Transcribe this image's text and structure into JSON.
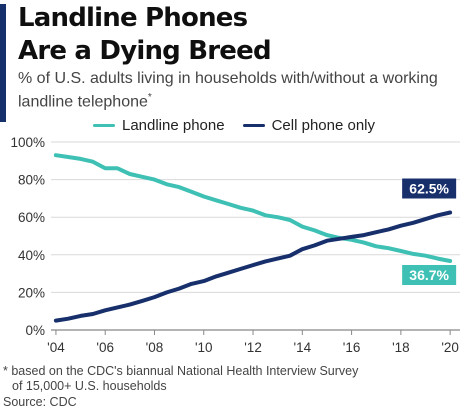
{
  "header": {
    "title_line1": "Landline Phones",
    "title_line2": "Are a Dying Breed",
    "subtitle_main": "% of U.S. adults living in households with/without a working landline telephone",
    "subtitle_marker": "*"
  },
  "colors": {
    "accent": "#15306b",
    "landline": "#3ec1b4",
    "cell": "#172f6b"
  },
  "chart_data": {
    "type": "line",
    "title": "Landline Phones Are a Dying Breed",
    "subtitle": "% of U.S. adults living in households with/without a working landline telephone*",
    "x": [
      2004.0,
      2004.5,
      2005.0,
      2005.5,
      2006.0,
      2006.5,
      2007.0,
      2007.5,
      2008.0,
      2008.5,
      2009.0,
      2009.5,
      2010.0,
      2010.5,
      2011.0,
      2011.5,
      2012.0,
      2012.5,
      2013.0,
      2013.5,
      2014.0,
      2014.5,
      2015.0,
      2015.5,
      2016.0,
      2016.5,
      2017.0,
      2017.5,
      2018.0,
      2018.5,
      2019.0,
      2019.5,
      2020.0
    ],
    "series": [
      {
        "name": "Landline phone",
        "color": "#3ec1b4",
        "values": [
          93.0,
          92.0,
          91.0,
          89.5,
          86.0,
          86.0,
          83.0,
          81.5,
          80.0,
          77.5,
          76.0,
          73.5,
          71.0,
          69.0,
          67.0,
          65.0,
          63.5,
          61.0,
          60.0,
          58.5,
          55.0,
          53.0,
          50.5,
          49.0,
          48.0,
          46.5,
          44.5,
          43.5,
          42.0,
          40.5,
          39.5,
          38.0,
          36.7
        ]
      },
      {
        "name": "Cell phone only",
        "color": "#172f6b",
        "values": [
          5.0,
          6.0,
          7.5,
          8.5,
          10.5,
          12.0,
          13.5,
          15.5,
          17.5,
          20.0,
          22.0,
          24.5,
          26.0,
          28.5,
          30.5,
          32.5,
          34.5,
          36.5,
          38.0,
          39.5,
          43.0,
          45.0,
          47.5,
          48.5,
          49.5,
          50.5,
          52.0,
          53.5,
          55.5,
          57.0,
          59.0,
          61.0,
          62.5
        ]
      }
    ],
    "x_tick_labels": [
      "'04",
      "'06",
      "'08",
      "'10",
      "'12",
      "'14",
      "'16",
      "'18",
      "'20"
    ],
    "x_tick_values": [
      2004,
      2006,
      2008,
      2010,
      2012,
      2014,
      2016,
      2018,
      2020
    ],
    "y_tick_labels": [
      "0%",
      "20%",
      "40%",
      "60%",
      "80%",
      "100%"
    ],
    "y_tick_values": [
      0,
      20,
      40,
      60,
      80,
      100
    ],
    "xlim": [
      2003.8,
      2020.4
    ],
    "ylim": [
      0,
      100
    ],
    "grid": "horizontal",
    "legend_position": "top-center",
    "end_labels": [
      {
        "series": "Cell phone only",
        "text": "62.5%"
      },
      {
        "series": "Landline phone",
        "text": "36.7%"
      }
    ]
  },
  "footer": {
    "footnote_line1": "* based on the CDC's biannual National Health Interview Survey",
    "footnote_line2": "of 15,000+ U.S. households",
    "source": "Source: CDC"
  }
}
